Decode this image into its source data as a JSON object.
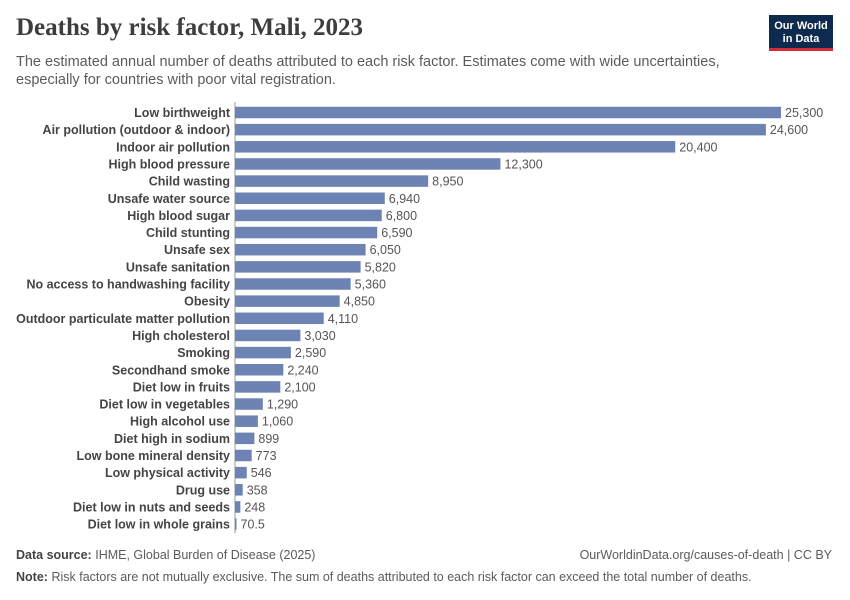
{
  "header": {
    "title": "Deaths by risk factor, Mali, 2023",
    "subtitle": "The estimated annual number of deaths attributed to each risk factor. Estimates come with wide uncertainties, especially for countries with poor vital registration."
  },
  "logo": {
    "line1": "Our World",
    "line2": "in Data"
  },
  "footer": {
    "source_label": "Data source:",
    "source_text": "IHME, Global Burden of Disease (2025)",
    "url_text": "OurWorldinData.org/causes-of-death | CC BY",
    "note_label": "Note:",
    "note_text": "Risk factors are not mutually exclusive. The sum of deaths attributed to each risk factor can exceed the total number of deaths."
  },
  "chart_data": {
    "type": "bar",
    "orientation": "horizontal",
    "bar_color": "#6d83b3",
    "categories": [
      "Low birthweight",
      "Air pollution (outdoor & indoor)",
      "Indoor air pollution",
      "High blood pressure",
      "Child wasting",
      "Unsafe water source",
      "High blood sugar",
      "Child stunting",
      "Unsafe sex",
      "Unsafe sanitation",
      "No access to handwashing facility",
      "Obesity",
      "Outdoor particulate matter pollution",
      "High cholesterol",
      "Smoking",
      "Secondhand smoke",
      "Diet low in fruits",
      "Diet low in vegetables",
      "High alcohol use",
      "Diet high in sodium",
      "Low bone mineral density",
      "Low physical activity",
      "Drug use",
      "Diet low in nuts and seeds",
      "Diet low in whole grains"
    ],
    "values": [
      25300,
      24600,
      20400,
      12300,
      8950,
      6940,
      6800,
      6590,
      6050,
      5820,
      5360,
      4850,
      4110,
      3030,
      2590,
      2240,
      2100,
      1290,
      1060,
      899,
      773,
      546,
      358,
      248,
      70.5
    ],
    "value_labels": [
      "25,300",
      "24,600",
      "20,400",
      "12,300",
      "8,950",
      "6,940",
      "6,800",
      "6,590",
      "6,050",
      "5,820",
      "5,360",
      "4,850",
      "4,110",
      "3,030",
      "2,590",
      "2,240",
      "2,100",
      "1,290",
      "1,060",
      "899",
      "773",
      "546",
      "358",
      "248",
      "70.5"
    ],
    "title": "Deaths by risk factor, Mali, 2023",
    "xlabel": "",
    "ylabel": "",
    "xlim": [
      0,
      25300
    ],
    "grid": false,
    "legend": "none"
  }
}
